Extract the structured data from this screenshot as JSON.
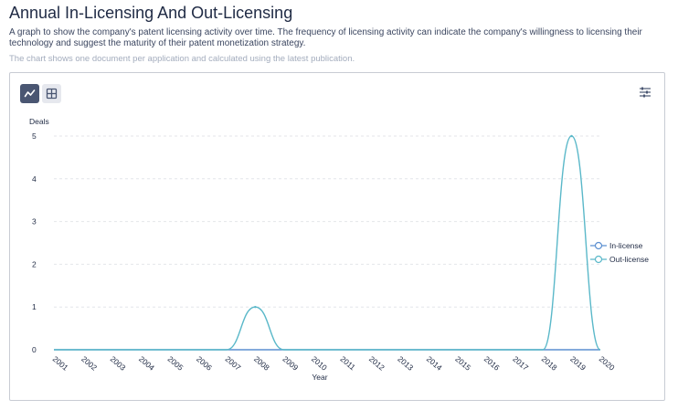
{
  "header": {
    "title": "Annual In-Licensing And Out-Licensing",
    "description": "A graph to show the company's patent licensing activity over time. The frequency of licensing activity can indicate the company's willingness to licensing their technology and suggest the maturity of their patent monetization strategy.",
    "note": "The chart shows one document per application and calculated using the latest publication."
  },
  "toolbar": {
    "chart_view_icon": "line-chart-icon",
    "table_view_icon": "table-grid-icon",
    "settings_icon": "sliders-icon"
  },
  "colors": {
    "in_license": "#5b8fd0",
    "out_license": "#5ab8c9",
    "grid": "#e4e6ea",
    "active_button": "#4a5672"
  },
  "chart_data": {
    "type": "line",
    "xlabel": "Year",
    "ylabel": "Deals",
    "x": [
      "2001",
      "2002",
      "2003",
      "2004",
      "2005",
      "2006",
      "2007",
      "2008",
      "2009",
      "2010",
      "2011",
      "2012",
      "2013",
      "2014",
      "2015",
      "2016",
      "2017",
      "2018",
      "2019",
      "2020"
    ],
    "ylim": [
      0,
      5
    ],
    "yticks": [
      "0",
      "1",
      "2",
      "3",
      "4",
      "5"
    ],
    "grid": true,
    "legend_position": "right",
    "series": [
      {
        "name": "In-license",
        "values": [
          0,
          0,
          0,
          0,
          0,
          0,
          0,
          0,
          0,
          0,
          0,
          0,
          0,
          0,
          0,
          0,
          0,
          0,
          0,
          0
        ],
        "color": "#5b8fd0"
      },
      {
        "name": "Out-license",
        "values": [
          0,
          0,
          0,
          0,
          0,
          0,
          0,
          1,
          0,
          0,
          0,
          0,
          0,
          0,
          0,
          0,
          0,
          0,
          5,
          0
        ],
        "color": "#5ab8c9"
      }
    ]
  }
}
